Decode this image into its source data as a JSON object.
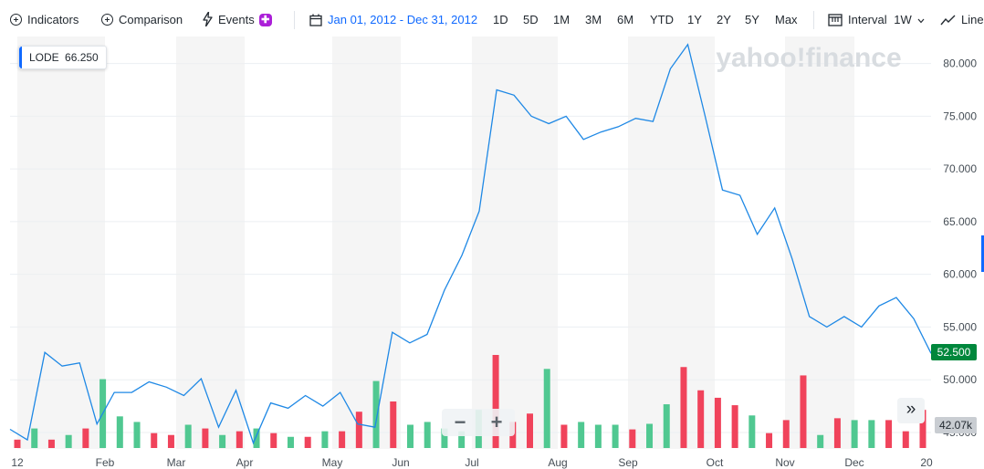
{
  "toolbar": {
    "indicators_label": "Indicators",
    "comparison_label": "Comparison",
    "events_label": "Events",
    "events_badge": "✚",
    "date_range": "Jan 01, 2012 - Dec 31, 2012",
    "periods": [
      "1D",
      "5D",
      "1M",
      "3M",
      "6M",
      "YTD",
      "1Y",
      "2Y",
      "5Y",
      "Max"
    ],
    "interval_label": "Interval",
    "interval_value": "1W",
    "chart_type_label": "Line"
  },
  "watermark": "yahoo!finance",
  "legend": {
    "symbol": "LODE",
    "value": "66.250"
  },
  "last_price_tag": "52.500",
  "volume_tag": "42.07k",
  "zoom": {
    "minus": "−",
    "plus": "+"
  },
  "expand_icon": "»",
  "colors": {
    "price_line": "#1e88e5",
    "volume_up": "#50c891",
    "volume_down": "#f0435b",
    "last_price_bg": "#00873c"
  },
  "chart_data": {
    "type": "line",
    "x_tick_labels": [
      "12",
      "Feb",
      "Mar",
      "Apr",
      "May",
      "Jun",
      "Jul",
      "Aug",
      "Sep",
      "Oct",
      "Nov",
      "Dec",
      "20"
    ],
    "y_tick_labels": [
      "45.000",
      "50.000",
      "55.000",
      "60.000",
      "65.000",
      "70.000",
      "75.000",
      "80.000"
    ],
    "ylim": [
      44.5,
      82.5
    ],
    "series": [
      {
        "name": "LODE",
        "values": [
          45.3,
          44.3,
          52.6,
          51.3,
          51.6,
          45.8,
          48.8,
          48.8,
          49.8,
          49.3,
          48.5,
          50.1,
          45.5,
          49.0,
          44.0,
          47.8,
          47.3,
          48.5,
          47.5,
          48.8,
          45.8,
          45.5,
          54.5,
          53.5,
          54.3,
          58.5,
          61.8,
          66.0,
          77.5,
          77.0,
          75.0,
          74.3,
          75.0,
          72.8,
          73.5,
          74.0,
          74.8,
          74.5,
          79.5,
          81.8,
          75.0,
          68.0,
          67.5,
          63.8,
          66.3,
          61.5,
          56.0,
          55.0,
          56.0,
          55.0,
          57.0,
          57.8,
          55.8,
          52.5
        ]
      }
    ],
    "volume_series": [
      {
        "name": "Volume",
        "up_flags": [
          0,
          1,
          0,
          1,
          0,
          1,
          1,
          1,
          0,
          0,
          1,
          0,
          1,
          0,
          1,
          0,
          1,
          0,
          1,
          0,
          0,
          1,
          0,
          1,
          1,
          1,
          1,
          1,
          0,
          0,
          0,
          1,
          0,
          1,
          1,
          1,
          0,
          1,
          1,
          0,
          0,
          0,
          0,
          1,
          0,
          0,
          0,
          1,
          0,
          1,
          1,
          0,
          0
        ],
        "relative_heights": [
          0.09,
          0.21,
          0.09,
          0.14,
          0.21,
          0.74,
          0.34,
          0.28,
          0.16,
          0.14,
          0.25,
          0.21,
          0.14,
          0.18,
          0.21,
          0.16,
          0.12,
          0.12,
          0.18,
          0.18,
          0.39,
          0.72,
          0.5,
          0.25,
          0.28,
          0.21,
          0.18,
          0.41,
          1.0,
          0.28,
          0.37,
          0.85,
          0.25,
          0.28,
          0.25,
          0.25,
          0.2,
          0.26,
          0.47,
          0.87,
          0.62,
          0.54,
          0.46,
          0.35,
          0.16,
          0.3,
          0.78,
          0.14,
          0.32,
          0.3,
          0.3,
          0.3,
          0.18,
          0.41
        ]
      }
    ]
  }
}
